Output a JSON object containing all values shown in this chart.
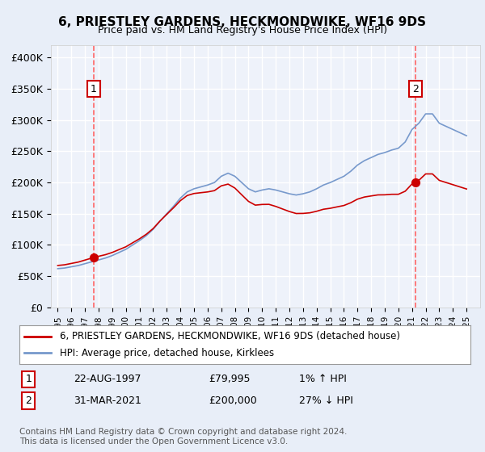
{
  "title": "6, PRIESTLEY GARDENS, HECKMONDWIKE, WF16 9DS",
  "subtitle": "Price paid vs. HM Land Registry's House Price Index (HPI)",
  "legend_line1": "6, PRIESTLEY GARDENS, HECKMONDWIKE, WF16 9DS (detached house)",
  "legend_line2": "HPI: Average price, detached house, Kirklees",
  "footnote": "Contains HM Land Registry data © Crown copyright and database right 2024.\nThis data is licensed under the Open Government Licence v3.0.",
  "sale1_label": "1",
  "sale1_date": "22-AUG-1997",
  "sale1_price": "£79,995",
  "sale1_hpi": "1% ↑ HPI",
  "sale2_label": "2",
  "sale2_date": "31-MAR-2021",
  "sale2_price": "£200,000",
  "sale2_hpi": "27% ↓ HPI",
  "sale1_year": 1997.65,
  "sale1_value": 79995,
  "sale2_year": 2021.25,
  "sale2_value": 200000,
  "ylim": [
    0,
    420000
  ],
  "yticks": [
    0,
    50000,
    100000,
    150000,
    200000,
    250000,
    300000,
    350000,
    400000
  ],
  "ytick_labels": [
    "£0",
    "£50K",
    "£100K",
    "£150K",
    "£200K",
    "£250K",
    "£300K",
    "£350K",
    "£400K"
  ],
  "xlim_start": 1994.5,
  "xlim_end": 2026.0,
  "bg_color": "#e8eef8",
  "plot_bg_color": "#eef2fa",
  "grid_color": "#ffffff",
  "sale_line_color": "#ff6666",
  "hpi_line_color": "#7799cc",
  "price_line_color": "#cc0000",
  "dot_color": "#cc0000",
  "label_box_color": "#ffffff",
  "label_box_edge": "#cc0000"
}
